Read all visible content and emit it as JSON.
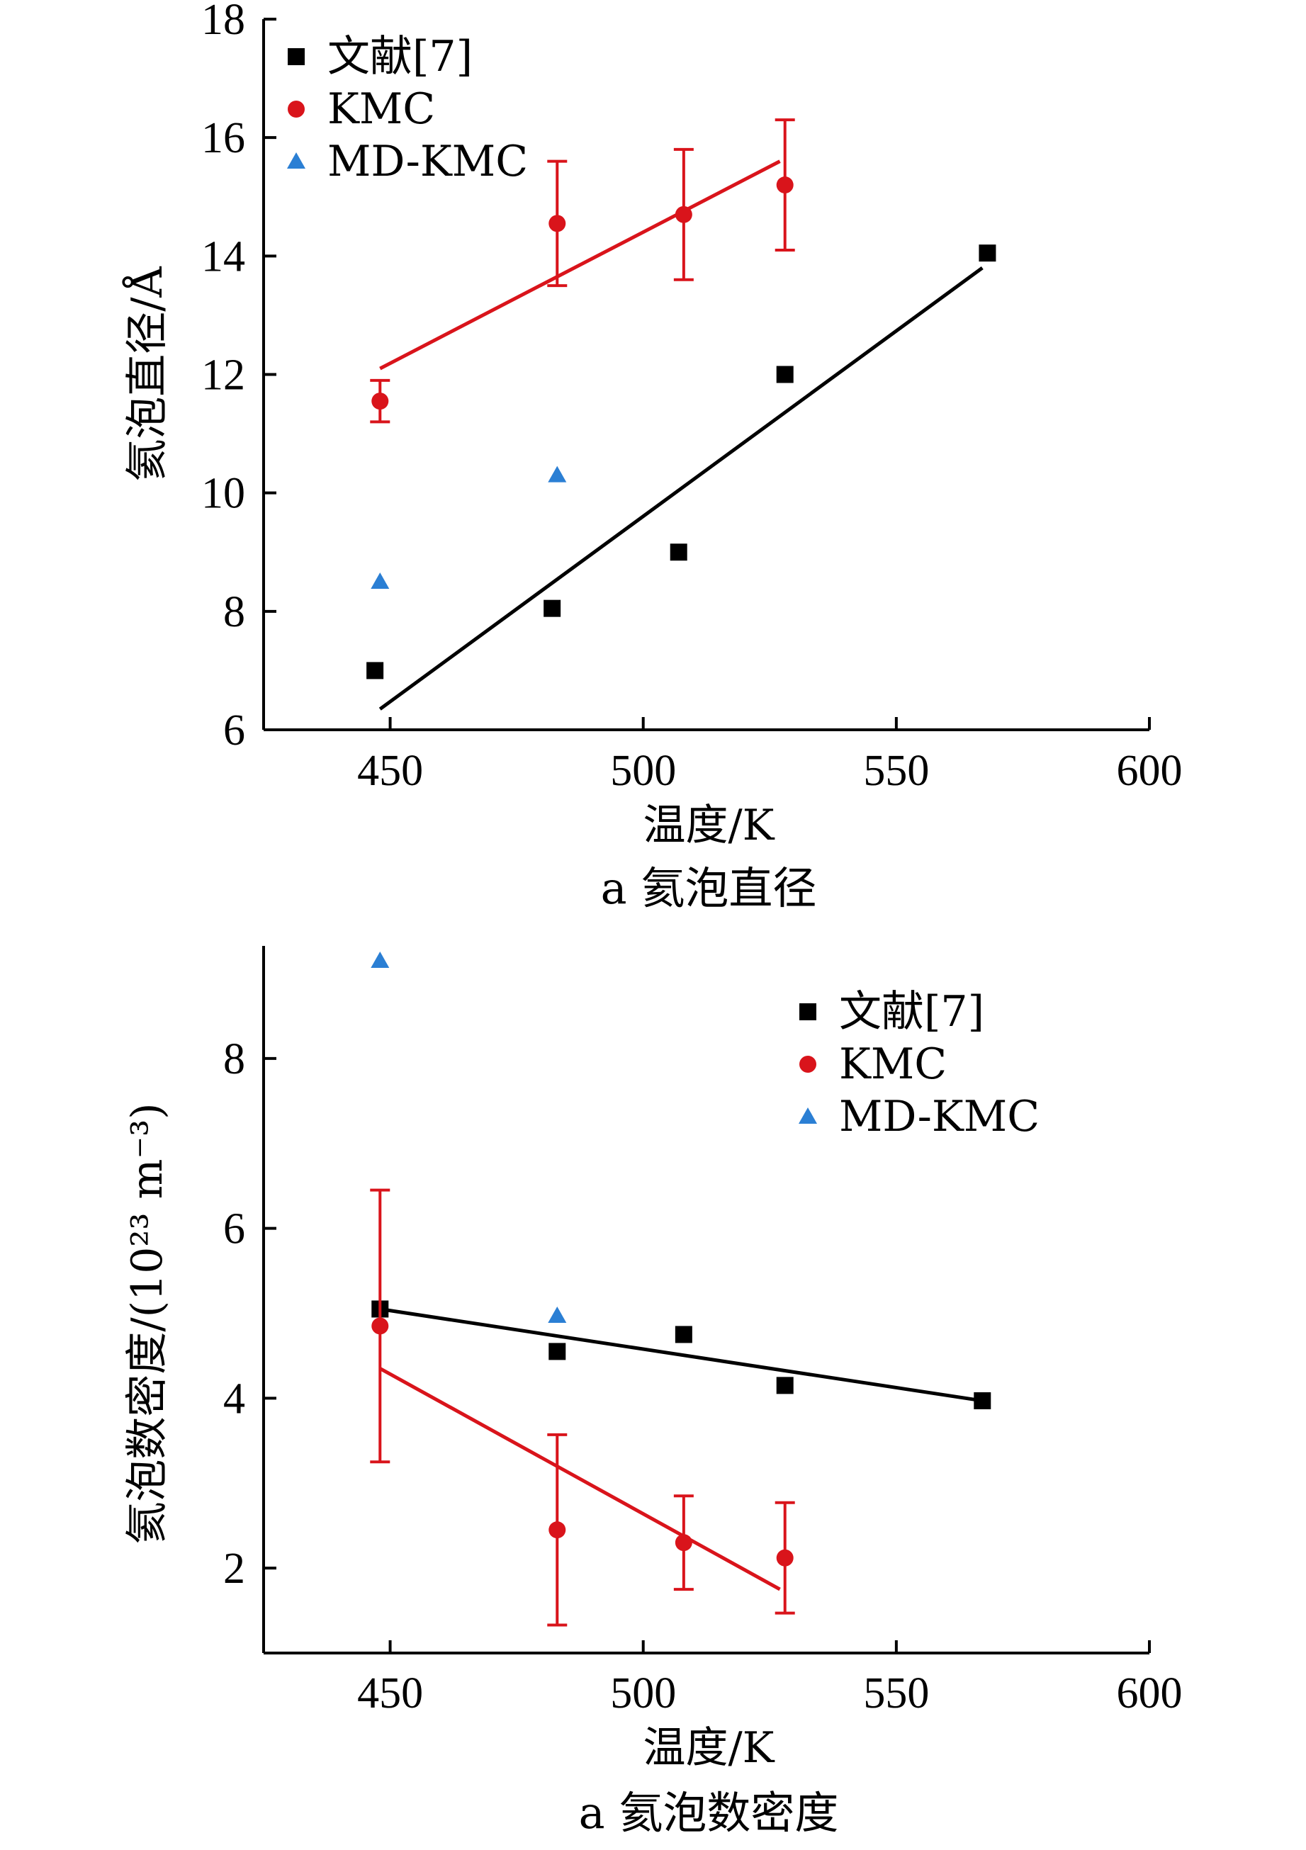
{
  "chart_data": [
    {
      "type": "scatter",
      "id": "diameter",
      "caption": "a 氦泡直径",
      "xlabel": "温度/K",
      "ylabel": "氦泡直径/Å",
      "xlim": [
        425,
        600
      ],
      "ylim": [
        6,
        18
      ],
      "xticks": [
        450,
        500,
        550,
        600
      ],
      "yticks": [
        6,
        8,
        10,
        12,
        14,
        16,
        18
      ],
      "legend_position": "top-left",
      "series": [
        {
          "name": "文献[7]",
          "marker": "square",
          "color": "#000000",
          "points": [
            [
              447,
              7.0
            ],
            [
              482,
              8.05
            ],
            [
              507,
              9.0
            ],
            [
              528,
              12.0
            ],
            [
              568,
              14.05
            ]
          ],
          "fit": [
            [
              448,
              6.35
            ],
            [
              567,
              13.8
            ]
          ]
        },
        {
          "name": "KMC",
          "marker": "circle",
          "color": "#d9141b",
          "points": [
            [
              448,
              11.55
            ],
            [
              483,
              14.55
            ],
            [
              508,
              14.7
            ],
            [
              528,
              15.2
            ]
          ],
          "errors": [
            0.35,
            1.05,
            1.1,
            1.1
          ],
          "fit": [
            [
              448,
              12.1
            ],
            [
              527,
              15.6
            ]
          ]
        },
        {
          "name": "MD-KMC",
          "marker": "triangle",
          "color": "#2b7fd4",
          "points": [
            [
              448,
              8.5
            ],
            [
              483,
              10.3
            ]
          ]
        }
      ]
    },
    {
      "type": "scatter",
      "id": "density",
      "caption": "a 氦泡数密度",
      "xlabel": "温度/K",
      "ylabel": "氦泡数密度/(10²³ m⁻³)",
      "xlim": [
        425,
        600
      ],
      "ylim": [
        1,
        9.6
      ],
      "xticks": [
        450,
        500,
        550,
        600
      ],
      "yticks": [
        2,
        4,
        6,
        8
      ],
      "legend_position": "top-right",
      "series": [
        {
          "name": "文献[7]",
          "marker": "square",
          "color": "#000000",
          "points": [
            [
              448,
              5.05
            ],
            [
              483,
              4.55
            ],
            [
              508,
              4.75
            ],
            [
              528,
              4.15
            ],
            [
              567,
              3.97
            ]
          ],
          "fit": [
            [
              448,
              5.05
            ],
            [
              567,
              3.97
            ]
          ]
        },
        {
          "name": "KMC",
          "marker": "circle",
          "color": "#d9141b",
          "points": [
            [
              448,
              4.85
            ],
            [
              483,
              2.45
            ],
            [
              508,
              2.3
            ],
            [
              528,
              2.12
            ]
          ],
          "errors": [
            1.6,
            1.12,
            0.55,
            0.65
          ],
          "fit": [
            [
              448,
              4.35
            ],
            [
              527,
              1.75
            ]
          ]
        },
        {
          "name": "MD-KMC",
          "marker": "triangle",
          "color": "#2b7fd4",
          "points": [
            [
              448,
              9.15
            ],
            [
              483,
              4.97
            ]
          ]
        }
      ]
    }
  ]
}
